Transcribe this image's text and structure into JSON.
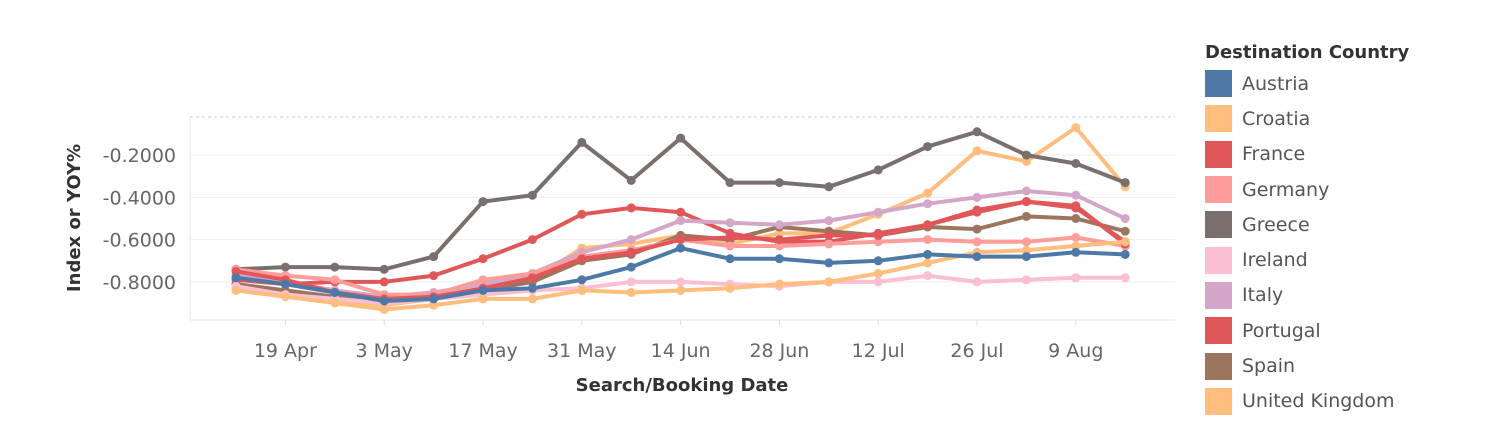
{
  "chart_data": {
    "type": "line",
    "xlabel": "Search/Booking Date",
    "ylabel": "Index or YOY%",
    "x_tick_labels": [
      "19 Apr",
      "3 May",
      "17 May",
      "31 May",
      "14 Jun",
      "28 Jun",
      "12 Jul",
      "26 Jul",
      "9 Aug"
    ],
    "y_tick_labels": [
      "-0.2000",
      "-0.4000",
      "-0.6000",
      "-0.8000"
    ],
    "ylim": [
      -0.98,
      -0.02
    ],
    "grid": "horizontal",
    "legend_placement": "right",
    "legend_title": "Destination Country",
    "x": [
      "12 Apr",
      "19 Apr",
      "26 Apr",
      "3 May",
      "10 May",
      "17 May",
      "24 May",
      "31 May",
      "7 Jun",
      "14 Jun",
      "21 Jun",
      "28 Jun",
      "5 Jul",
      "12 Jul",
      "19 Jul",
      "26 Jul",
      "2 Aug",
      "9 Aug",
      "16 Aug"
    ],
    "series": [
      {
        "name": "Austria",
        "color": "#4e79a7",
        "values": [
          -0.78,
          -0.81,
          -0.85,
          -0.89,
          -0.88,
          -0.84,
          -0.83,
          -0.79,
          -0.73,
          -0.64,
          -0.69,
          -0.69,
          -0.71,
          -0.7,
          -0.67,
          -0.68,
          -0.68,
          -0.66,
          -0.67
        ]
      },
      {
        "name": "Croatia",
        "color": "#ffbe7d",
        "values": [
          -0.84,
          -0.87,
          -0.9,
          -0.93,
          -0.91,
          -0.88,
          -0.88,
          -0.84,
          -0.85,
          -0.84,
          -0.83,
          -0.81,
          -0.8,
          -0.76,
          -0.71,
          -0.66,
          -0.65,
          -0.63,
          -0.61
        ]
      },
      {
        "name": "France",
        "color": "#e15759",
        "values": [
          -0.75,
          -0.79,
          -0.85,
          -0.88,
          -0.87,
          -0.83,
          -0.78,
          -0.69,
          -0.66,
          -0.6,
          -0.59,
          -0.6,
          -0.58,
          -0.58,
          -0.53,
          -0.47,
          -0.42,
          -0.44,
          -0.62
        ]
      },
      {
        "name": "Germany",
        "color": "#ff9d9a",
        "values": [
          -0.74,
          -0.77,
          -0.79,
          -0.86,
          -0.86,
          -0.79,
          -0.76,
          -0.68,
          -0.65,
          -0.6,
          -0.63,
          -0.63,
          -0.62,
          -0.61,
          -0.6,
          -0.61,
          -0.61,
          -0.59,
          -0.63
        ]
      },
      {
        "name": "Greece",
        "color": "#79706e",
        "values": [
          -0.74,
          -0.73,
          -0.73,
          -0.74,
          -0.68,
          -0.42,
          -0.39,
          -0.14,
          -0.32,
          -0.12,
          -0.33,
          -0.33,
          -0.35,
          -0.27,
          -0.16,
          -0.09,
          -0.2,
          -0.24,
          -0.33
        ]
      },
      {
        "name": "Ireland",
        "color": "#fabfd2",
        "values": [
          -0.82,
          -0.86,
          -0.88,
          -0.9,
          -0.88,
          -0.86,
          -0.84,
          -0.83,
          -0.8,
          -0.8,
          -0.81,
          -0.82,
          -0.8,
          -0.8,
          -0.77,
          -0.8,
          -0.79,
          -0.78,
          -0.78
        ]
      },
      {
        "name": "Italy",
        "color": "#d4a6c8",
        "values": [
          -0.77,
          -0.8,
          -0.84,
          -0.87,
          -0.85,
          -0.81,
          -0.76,
          -0.66,
          -0.6,
          -0.51,
          -0.52,
          -0.53,
          -0.51,
          -0.47,
          -0.43,
          -0.4,
          -0.37,
          -0.39,
          -0.5
        ]
      },
      {
        "name": "Portugal",
        "color": "#e05759",
        "values": [
          -0.79,
          -0.81,
          -0.8,
          -0.8,
          -0.77,
          -0.69,
          -0.6,
          -0.48,
          -0.45,
          -0.47,
          -0.57,
          -0.61,
          -0.61,
          -0.57,
          -0.53,
          -0.46,
          -0.42,
          -0.45,
          -0.61
        ]
      },
      {
        "name": "Spain",
        "color": "#9c755f",
        "values": [
          -0.81,
          -0.84,
          -0.87,
          -0.89,
          -0.88,
          -0.84,
          -0.8,
          -0.7,
          -0.67,
          -0.58,
          -0.6,
          -0.54,
          -0.56,
          -0.58,
          -0.54,
          -0.55,
          -0.49,
          -0.5,
          -0.56
        ]
      },
      {
        "name": "United Kingdom",
        "color": "#ffbe7d",
        "values": [
          -0.83,
          -0.86,
          -0.89,
          -0.91,
          -0.88,
          -0.84,
          -0.79,
          -0.64,
          -0.62,
          -0.58,
          -0.62,
          -0.57,
          -0.57,
          -0.48,
          -0.38,
          -0.18,
          -0.23,
          -0.07,
          -0.35
        ]
      }
    ]
  }
}
